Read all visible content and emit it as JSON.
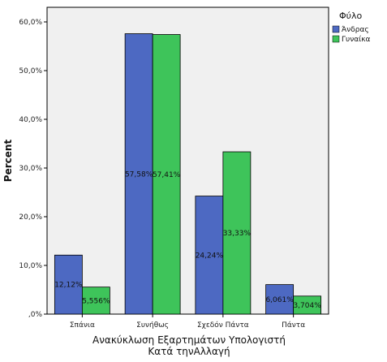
{
  "chart_data": {
    "type": "bar",
    "categories": [
      "Σπάνια",
      "Συνήθως",
      "Σχεδόν Πάντα",
      "Πάντα"
    ],
    "series": [
      {
        "name": "Άνδρας",
        "color": "#4d69c2",
        "values": [
          12.12,
          57.58,
          24.24,
          6.061
        ],
        "labels": [
          "12,12%",
          "57,58%",
          "24,24%",
          "6,061%"
        ]
      },
      {
        "name": "Γυναίκα",
        "color": "#3ec45a",
        "values": [
          5.556,
          57.41,
          33.33,
          3.704
        ],
        "labels": [
          "5,556%",
          "57,41%",
          "33,33%",
          "3,704%"
        ]
      }
    ],
    "ylabel": "Percent",
    "xlabel_lines": [
      "Ανακύκλωση Εξαρτημάτων Υπολογιστή",
      "Κατά τηνΑλλαγή"
    ],
    "yticks": [
      0,
      10,
      20,
      30,
      40,
      50,
      60
    ],
    "ytick_labels": [
      ",0%",
      "10,0%",
      "20,0%",
      "30,0%",
      "40,0%",
      "50,0%",
      "60,0%"
    ],
    "ylim": [
      0,
      63
    ],
    "legend": {
      "title": "Φύλο",
      "position": "top-right"
    },
    "plot_background": "#f0f0f0",
    "grid": false
  }
}
